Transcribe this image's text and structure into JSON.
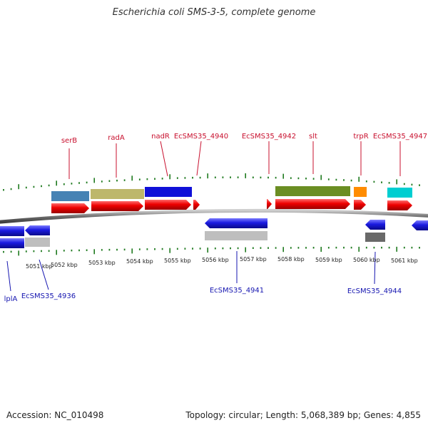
{
  "title": "Escherichia coli SMS-3-5, complete genome",
  "footer": {
    "accession": "Accession: NC_010498",
    "topology": "Topology: circular; Length: 5,068,389 bp; Genes: 4,855"
  },
  "colors": {
    "forward_arrow": "#e00000",
    "reverse_arrow": "#1a1ae0",
    "tick_green": "#1f7a1f",
    "forward_label": "#c8102e",
    "reverse_label": "#1515b0",
    "backbone": "#7a7a7a"
  },
  "scale_labels": [
    "5051 kbp",
    "5052 kbp",
    "5053 kbp",
    "5054 kbp",
    "5055 kbp",
    "5056 kbp",
    "5057 kbp",
    "5058 kbp",
    "5059 kbp",
    "5060 kbp",
    "5061 kbp"
  ],
  "forward_labels": [
    "serB",
    "radA",
    "nadR",
    "EcSMS35_4940",
    "EcSMS35_4942",
    "slt",
    "trpR",
    "EcSMS35_4947"
  ],
  "reverse_labels": [
    "lplA",
    "EcSMS35_4936",
    "EcSMS35_4941",
    "EcSMS35_4944"
  ],
  "cog_colors_forward": [
    "#4682b4",
    "#bdb76b",
    "#1010d8",
    "#6b8e23",
    "#ff8c00",
    "#00ced1"
  ],
  "cog_colors_reverse": [
    "#bebebe",
    "#bebebe",
    "#696969"
  ]
}
